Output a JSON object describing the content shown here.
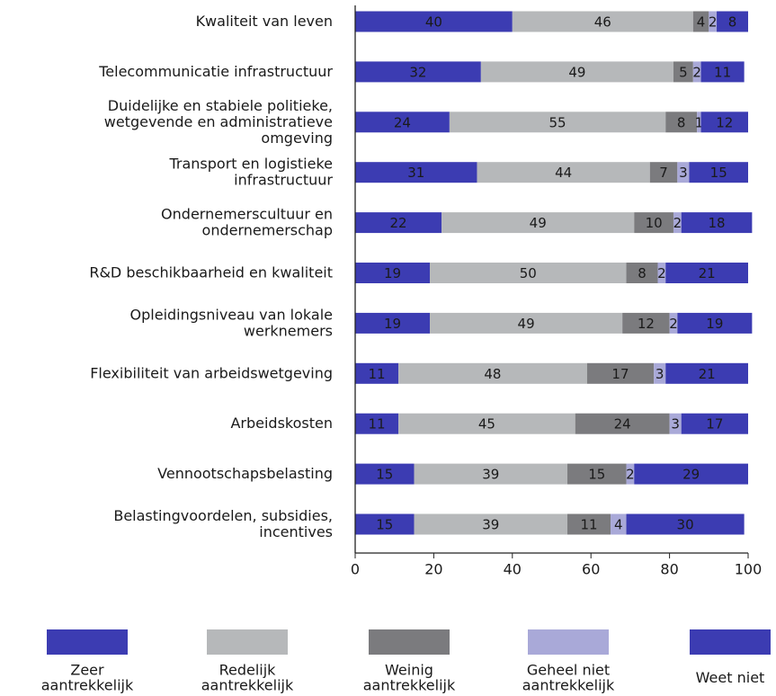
{
  "chart_data": {
    "type": "stacked-bar-horizontal",
    "categories": [
      "Kwaliteit van leven",
      "Telecommunicatie infrastructuur",
      "Duidelijke en stabiele politieke,\nwetgevende en administratieve\nomgeving",
      "Transport en logistieke\ninfrastructuur",
      "Ondernemerscultuur en\nondernemerschap",
      "R&D beschikbaarheid en kwaliteit",
      "Opleidingsniveau van lokale\nwerknemers",
      "Flexibiliteit van arbeidswetgeving",
      "Arbeidskosten",
      "Vennootschapsbelasting",
      "Belastingvoordelen, subsidies,\nincentives"
    ],
    "series": [
      {
        "name": "Zeer\naantrekkelijk",
        "color": "#3c3cb2",
        "values": [
          40,
          32,
          24,
          31,
          22,
          19,
          19,
          11,
          11,
          15,
          15
        ]
      },
      {
        "name": "Redelijk\naantrekkelijk",
        "color": "#b6b8ba",
        "values": [
          46,
          49,
          55,
          44,
          49,
          50,
          49,
          48,
          45,
          39,
          39
        ]
      },
      {
        "name": "Weinig\naantrekkelijk",
        "color": "#7b7b7e",
        "values": [
          4,
          5,
          8,
          7,
          10,
          8,
          12,
          17,
          24,
          15,
          11
        ]
      },
      {
        "name": "Geheel niet\naantrekkelijk",
        "color": "#a9a9d8",
        "values": [
          2,
          2,
          1,
          3,
          2,
          2,
          2,
          3,
          3,
          2,
          4
        ]
      },
      {
        "name": "Weet niet",
        "color": "#3c3cb2",
        "values": [
          8,
          11,
          12,
          15,
          18,
          21,
          19,
          21,
          17,
          29,
          30
        ]
      }
    ],
    "xlim": [
      0,
      100
    ],
    "xticks": [
      0,
      20,
      40,
      60,
      80,
      100
    ]
  }
}
